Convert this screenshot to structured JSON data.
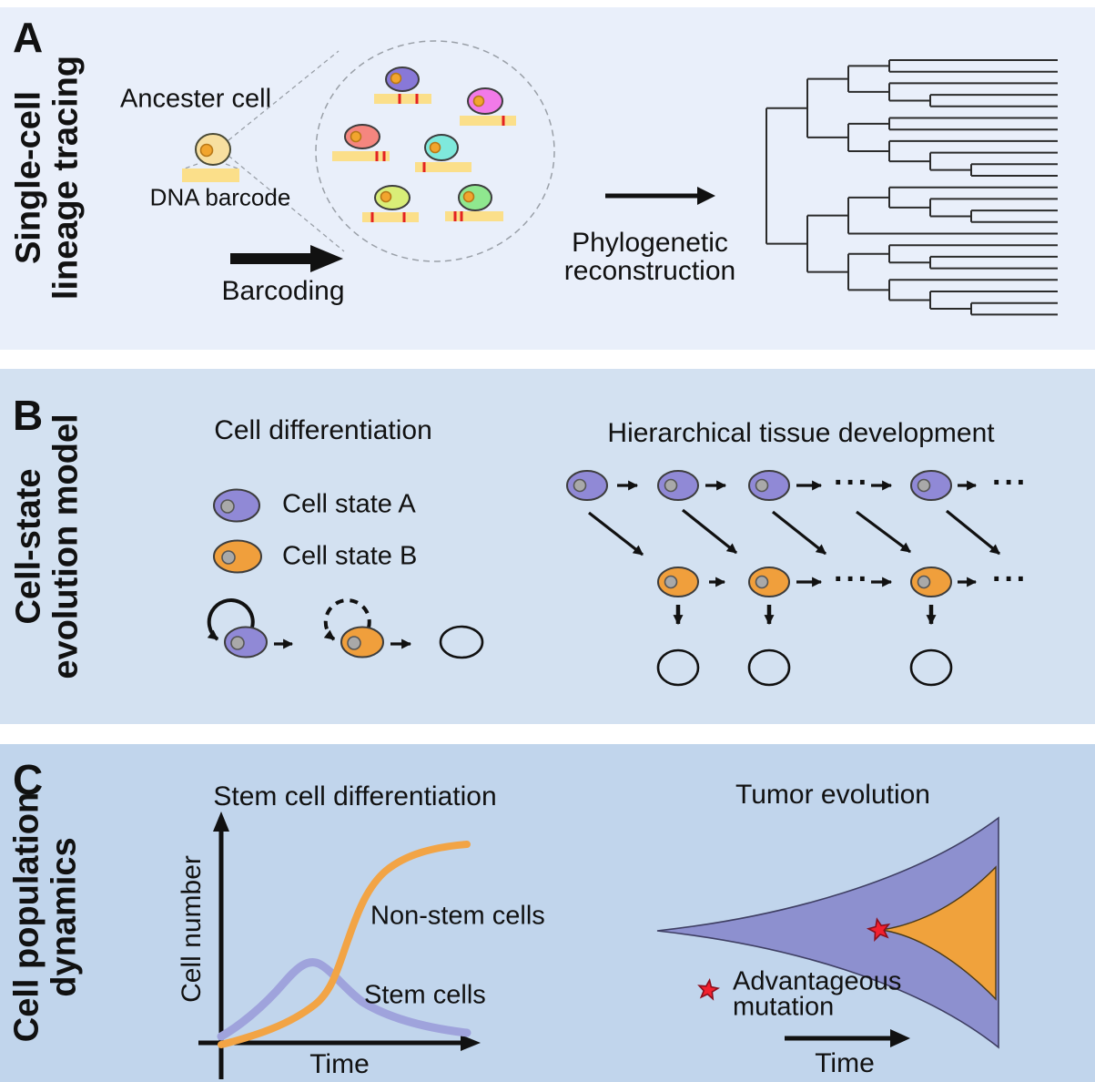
{
  "colors": {
    "panel_a_bg": "#e9effa",
    "panel_b_bg": "#d3e1f1",
    "panel_c_bg": "#c1d5ec",
    "cell_state_a": "#9089d6",
    "cell_state_b": "#f09f3c",
    "ancestor_cell": "#f7dfa0",
    "barcode": "#fbdf8a",
    "barcode_mark": "#e32222",
    "nucleus_orange": "#f2a52e",
    "clone_purple": "#8878d8",
    "clone_magenta": "#f27ae8",
    "clone_salmon": "#f5867f",
    "clone_cyan": "#7fe9dc",
    "clone_yellowgreen": "#d9ee78",
    "clone_green": "#8fe88f",
    "curve_orange": "#f2a445",
    "curve_purple": "#9fa3dc",
    "fish_purple": "#8d90cf",
    "fish_orange": "#f0a23c",
    "star_red": "#f3202e"
  },
  "panelA": {
    "letter": "A",
    "label_line1": "Single-cell",
    "label_line2": "lineage tracing",
    "ancestor_label": "Ancester cell",
    "barcode_label": "DNA barcode",
    "barcoding_label": "Barcoding",
    "phylo_line1": "Phylogenetic",
    "phylo_line2": "reconstruction",
    "tree": [
      [
        [
          [
            0,
            0
          ],
          [
            0,
            [
              0,
              0
            ]
          ]
        ],
        [
          [
            0,
            0
          ],
          [
            0,
            [
              0,
              [
                0,
                0
              ]
            ]
          ]
        ]
      ],
      [
        [
          [
            0,
            [
              0,
              [
                0,
                0
              ]
            ]
          ],
          0
        ],
        [
          [
            0,
            [
              0,
              0
            ]
          ],
          [
            0,
            [
              0,
              [
                0,
                0
              ]
            ]
          ]
        ]
      ]
    ]
  },
  "panelB": {
    "letter": "B",
    "label_line1": "Cell-state",
    "label_line2": "evolution model",
    "heading_left": "Cell differentiation",
    "heading_right": "Hierarchical tissue development",
    "legend": [
      {
        "label": "Cell state A"
      },
      {
        "label": "Cell state B"
      }
    ],
    "dots": "···"
  },
  "panelC": {
    "letter": "C",
    "label_line1": "Cell population",
    "label_line2": "dynamics",
    "heading_left": "Stem cell differentiation",
    "heading_right": "Tumor evolution",
    "ylabel": "Cell number",
    "xlabel": "Time",
    "curve_label_orange": "Non-stem cells",
    "curve_label_purple": "Stem cells",
    "mutation_label_line1": "Advantageous",
    "mutation_label_line2": "mutation",
    "time_label": "Time"
  }
}
